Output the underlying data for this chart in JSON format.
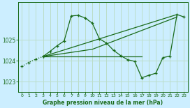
{
  "title": "Graphe pression niveau de la mer (hPa)",
  "background_color": "#cceeff",
  "grid_color": "#bbddc8",
  "line_color": "#1a6b1a",
  "xlim": [
    -0.5,
    23.5
  ],
  "ylim": [
    1022.5,
    1026.8
  ],
  "yticks": [
    1023,
    1024,
    1025
  ],
  "xticks": [
    0,
    1,
    2,
    3,
    4,
    5,
    6,
    7,
    8,
    9,
    10,
    11,
    12,
    13,
    14,
    15,
    16,
    17,
    18,
    19,
    20,
    21,
    22,
    23
  ],
  "line1_x": [
    0,
    1,
    2,
    3
  ],
  "line1_y": [
    1023.73,
    1023.92,
    1024.08,
    1024.2
  ],
  "line2_x": [
    3,
    4,
    5,
    6,
    7,
    8,
    9,
    10,
    11,
    12,
    13,
    14,
    15,
    16,
    17,
    18,
    19,
    20,
    21,
    22,
    23
  ],
  "line2_y": [
    1024.2,
    1024.45,
    1024.72,
    1024.95,
    1026.15,
    1026.18,
    1026.05,
    1025.8,
    1025.05,
    1024.85,
    1024.5,
    1024.25,
    1024.05,
    1023.97,
    1023.18,
    1023.3,
    1023.4,
    1024.15,
    1024.22,
    1026.22,
    1026.1
  ],
  "line3_x": [
    3,
    22
  ],
  "line3_y": [
    1024.2,
    1026.22
  ],
  "line4_x": [
    3,
    17
  ],
  "line4_y": [
    1024.2,
    1024.2
  ],
  "line5_x": [
    3,
    10,
    22
  ],
  "line5_y": [
    1024.2,
    1024.55,
    1026.1
  ]
}
